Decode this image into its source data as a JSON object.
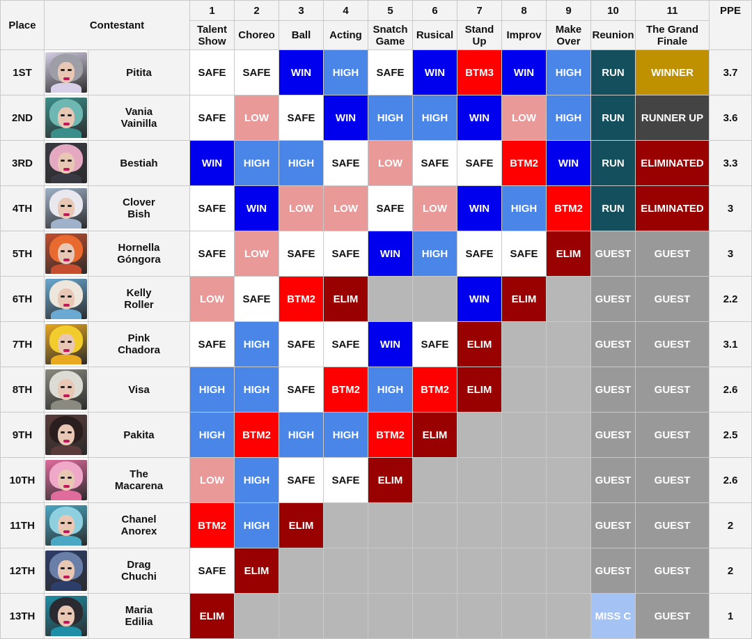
{
  "table": {
    "headers": {
      "place": "Place",
      "contestant": "Contestant",
      "ppe": "PPE",
      "episodes": [
        {
          "num": "1",
          "title": "Talent Show"
        },
        {
          "num": "2",
          "title": "Choreo"
        },
        {
          "num": "3",
          "title": "Ball"
        },
        {
          "num": "4",
          "title": "Acting"
        },
        {
          "num": "5",
          "title": "Snatch Game"
        },
        {
          "num": "6",
          "title": "Rusical"
        },
        {
          "num": "7",
          "title": "Stand Up"
        },
        {
          "num": "8",
          "title": "Improv"
        },
        {
          "num": "9",
          "title": "Make Over"
        },
        {
          "num": "10",
          "title": "Reunion"
        },
        {
          "num": "11",
          "title": "The Grand Finale"
        }
      ]
    },
    "colors": {
      "SAFE": "#ffffff",
      "WIN": "#0000ee",
      "HIGH": "#4a86e8",
      "LOW": "#ea9999",
      "BTM": "#ff0000",
      "ELIM": "#990000",
      "RUN": "#134f5c",
      "GUEST": "#999999",
      "WINNER": "#bf9000",
      "RUNNER UP": "#444444",
      "MISS C": "#a4c2f4",
      "eliminated_grey": "#b7b7b7"
    },
    "rows": [
      {
        "place": "1ST",
        "name_line1": "Pitita",
        "name_line2": "",
        "photo_colors": [
          "#9e9ea6",
          "#d8d0e8"
        ],
        "results": [
          "SAFE",
          "SAFE",
          "WIN",
          "HIGH",
          "SAFE",
          "WIN",
          "BTM3",
          "WIN",
          "HIGH",
          "RUN",
          "WINNER"
        ],
        "ppe": "3.7"
      },
      {
        "place": "2ND",
        "name_line1": "Vania",
        "name_line2": "Vainilla",
        "photo_colors": [
          "#6fb7b2",
          "#3b8f8b"
        ],
        "results": [
          "SAFE",
          "LOW",
          "SAFE",
          "WIN",
          "HIGH",
          "HIGH",
          "WIN",
          "LOW",
          "HIGH",
          "RUN",
          "RUNNER UP"
        ],
        "ppe": "3.6"
      },
      {
        "place": "3RD",
        "name_line1": "Bestiah",
        "name_line2": "",
        "photo_colors": [
          "#e4a9c0",
          "#3a3a44"
        ],
        "results": [
          "WIN",
          "HIGH",
          "HIGH",
          "SAFE",
          "LOW",
          "SAFE",
          "SAFE",
          "BTM2",
          "WIN",
          "RUN",
          "ELIMINATED"
        ],
        "ppe": "3.3"
      },
      {
        "place": "4TH",
        "name_line1": "Clover",
        "name_line2": "Bish",
        "photo_colors": [
          "#e8e8ee",
          "#9fb2c9"
        ],
        "results": [
          "SAFE",
          "WIN",
          "LOW",
          "LOW",
          "SAFE",
          "LOW",
          "WIN",
          "HIGH",
          "BTM2",
          "RUN",
          "ELIMINATED"
        ],
        "ppe": "3"
      },
      {
        "place": "5TH",
        "name_line1": "Hornella",
        "name_line2": "Góngora",
        "photo_colors": [
          "#e86a2e",
          "#c44e2e"
        ],
        "results": [
          "SAFE",
          "LOW",
          "SAFE",
          "SAFE",
          "WIN",
          "HIGH",
          "SAFE",
          "SAFE",
          "ELIM",
          "GUEST",
          "GUEST"
        ],
        "ppe": "3"
      },
      {
        "place": "6TH",
        "name_line1": "Kelly",
        "name_line2": "Roller",
        "photo_colors": [
          "#ece6dc",
          "#6aa9d1"
        ],
        "results": [
          "LOW",
          "SAFE",
          "BTM2",
          "ELIM",
          "",
          "",
          "WIN",
          "ELIM",
          "",
          "GUEST",
          "GUEST"
        ],
        "ppe": "2.2"
      },
      {
        "place": "7TH",
        "name_line1": "Pink",
        "name_line2": "Chadora",
        "photo_colors": [
          "#f2cc2c",
          "#e8a820"
        ],
        "results": [
          "SAFE",
          "HIGH",
          "SAFE",
          "SAFE",
          "WIN",
          "SAFE",
          "ELIM",
          "",
          "",
          "GUEST",
          "GUEST"
        ],
        "ppe": "3.1"
      },
      {
        "place": "8TH",
        "name_line1": "Visa",
        "name_line2": "",
        "photo_colors": [
          "#dcdcd4",
          "#8a8a80"
        ],
        "results": [
          "HIGH",
          "HIGH",
          "SAFE",
          "BTM2",
          "HIGH",
          "BTM2",
          "ELIM",
          "",
          "",
          "GUEST",
          "GUEST"
        ],
        "ppe": "2.6"
      },
      {
        "place": "9TH",
        "name_line1": "Pakita",
        "name_line2": "",
        "photo_colors": [
          "#2a1e1e",
          "#5a3a3a"
        ],
        "results": [
          "HIGH",
          "BTM2",
          "HIGH",
          "HIGH",
          "BTM2",
          "ELIM",
          "",
          "",
          "",
          "GUEST",
          "GUEST"
        ],
        "ppe": "2.5"
      },
      {
        "place": "10TH",
        "name_line1": "The",
        "name_line2": "Macarena",
        "photo_colors": [
          "#f0a8c8",
          "#e06c9e"
        ],
        "results": [
          "LOW",
          "HIGH",
          "SAFE",
          "SAFE",
          "ELIM",
          "",
          "",
          "",
          "",
          "GUEST",
          "GUEST"
        ],
        "ppe": "2.6"
      },
      {
        "place": "11TH",
        "name_line1": "Chanel",
        "name_line2": "Anorex",
        "photo_colors": [
          "#8fd0e0",
          "#4aa8c4"
        ],
        "results": [
          "BTM2",
          "HIGH",
          "ELIM",
          "",
          "",
          "",
          "",
          "",
          "",
          "GUEST",
          "GUEST"
        ],
        "ppe": "2"
      },
      {
        "place": "12TH",
        "name_line1": "Drag",
        "name_line2": "Chuchi",
        "photo_colors": [
          "#6a7fa8",
          "#2e3e6a"
        ],
        "results": [
          "SAFE",
          "ELIM",
          "",
          "",
          "",
          "",
          "",
          "",
          "",
          "GUEST",
          "GUEST"
        ],
        "ppe": "2"
      },
      {
        "place": "13TH",
        "name_line1": "Maria",
        "name_line2": "Edilia",
        "photo_colors": [
          "#2a2a30",
          "#1e8fa6"
        ],
        "results": [
          "ELIM",
          "",
          "",
          "",
          "",
          "",
          "",
          "",
          "",
          "MISS C",
          "GUEST"
        ],
        "ppe": "1"
      }
    ]
  }
}
